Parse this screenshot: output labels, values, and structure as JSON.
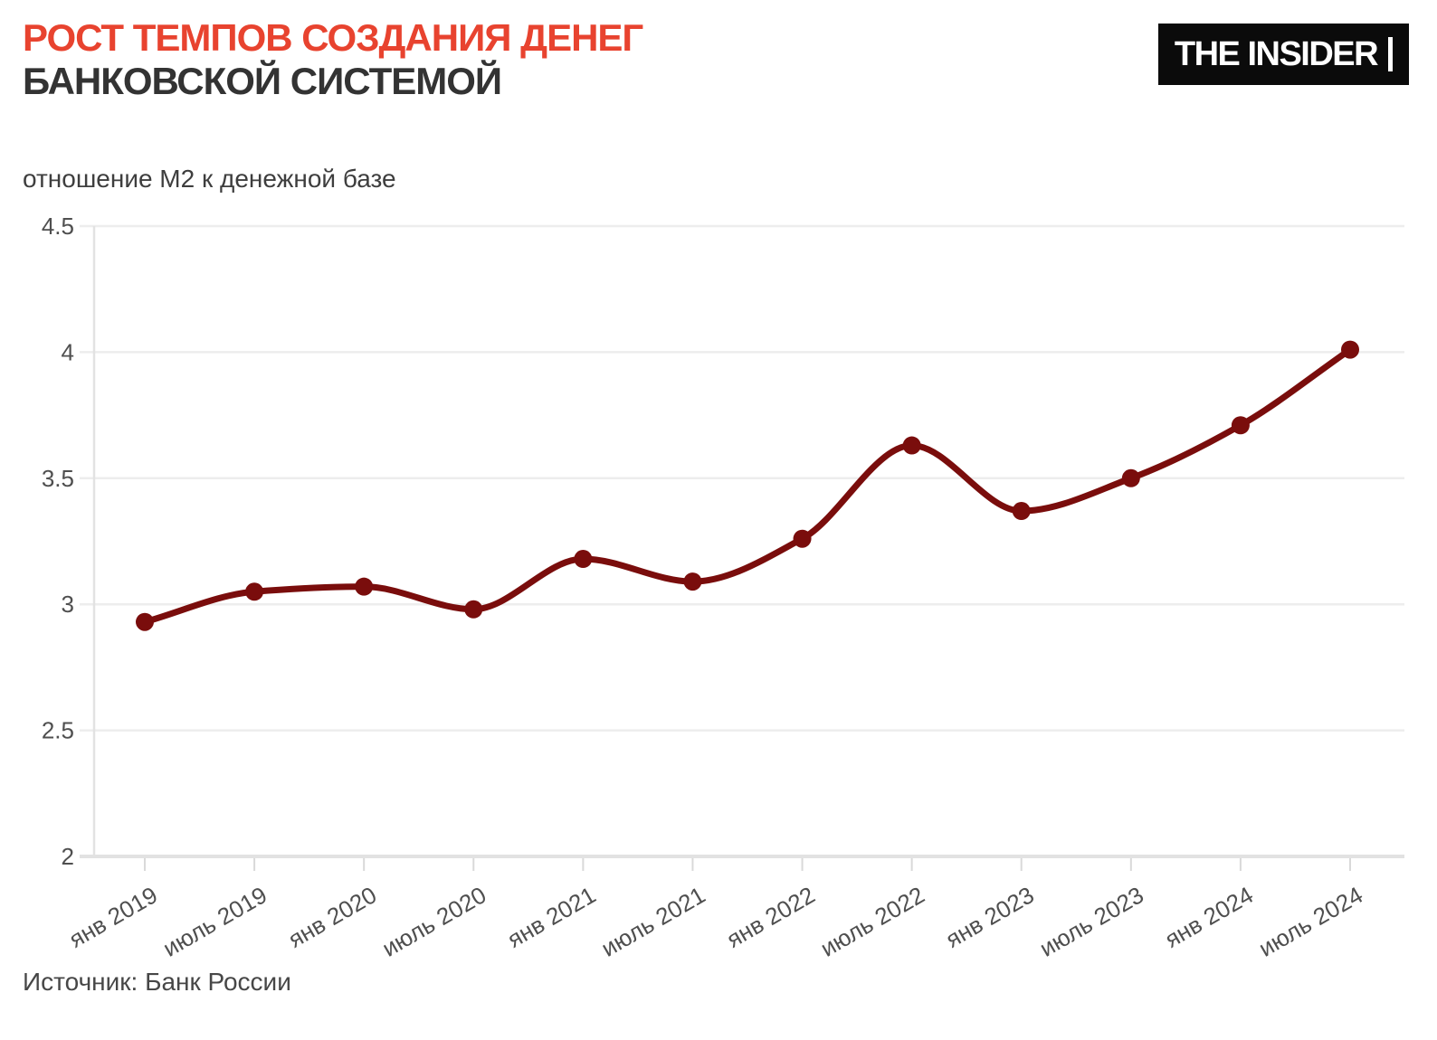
{
  "header": {
    "title_line1": "РОСТ ТЕМПОВ СОЗДАНИЯ ДЕНЕГ",
    "title_line2": "БАНКОВСКОЙ СИСТЕМОЙ",
    "subtitle": "отношение М2 к денежной базе",
    "logo_text": "THE INSIDER"
  },
  "footer": {
    "source": "Источник: Банк России"
  },
  "colors": {
    "accent_red": "#e8432f",
    "title_dark": "#333333",
    "line": "#7a0d0c",
    "marker": "#7a0d0c",
    "grid": "#ededed",
    "axis": "#e2e2e2",
    "tick": "#d9d9d9",
    "axis_text": "#4f4f4f"
  },
  "chart_data": {
    "type": "line",
    "title": "РОСТ ТЕМПОВ СОЗДАНИЯ ДЕНЕГ БАНКОВСКОЙ СИСТЕМОЙ",
    "subtitle": "отношение М2 к денежной базе",
    "xlabel": "",
    "ylabel": "отношение М2 к денежной базе",
    "categories": [
      "янв 2019",
      "июль 2019",
      "янв 2020",
      "июль 2020",
      "янв 2021",
      "июль 2021",
      "янв 2022",
      "июль 2022",
      "янв 2023",
      "июль 2023",
      "янв 2024",
      "июль 2024"
    ],
    "values": [
      2.93,
      3.05,
      3.07,
      2.98,
      3.18,
      3.09,
      3.26,
      3.63,
      3.37,
      3.5,
      3.71,
      4.01
    ],
    "y_ticks": [
      2,
      2.5,
      3,
      3.5,
      4,
      4.5
    ],
    "ylim": [
      2,
      4.5
    ],
    "grid": "horizontal",
    "legend": "none",
    "line_style": "smooth",
    "marker": "circle",
    "source": "Источник: Банк России"
  }
}
